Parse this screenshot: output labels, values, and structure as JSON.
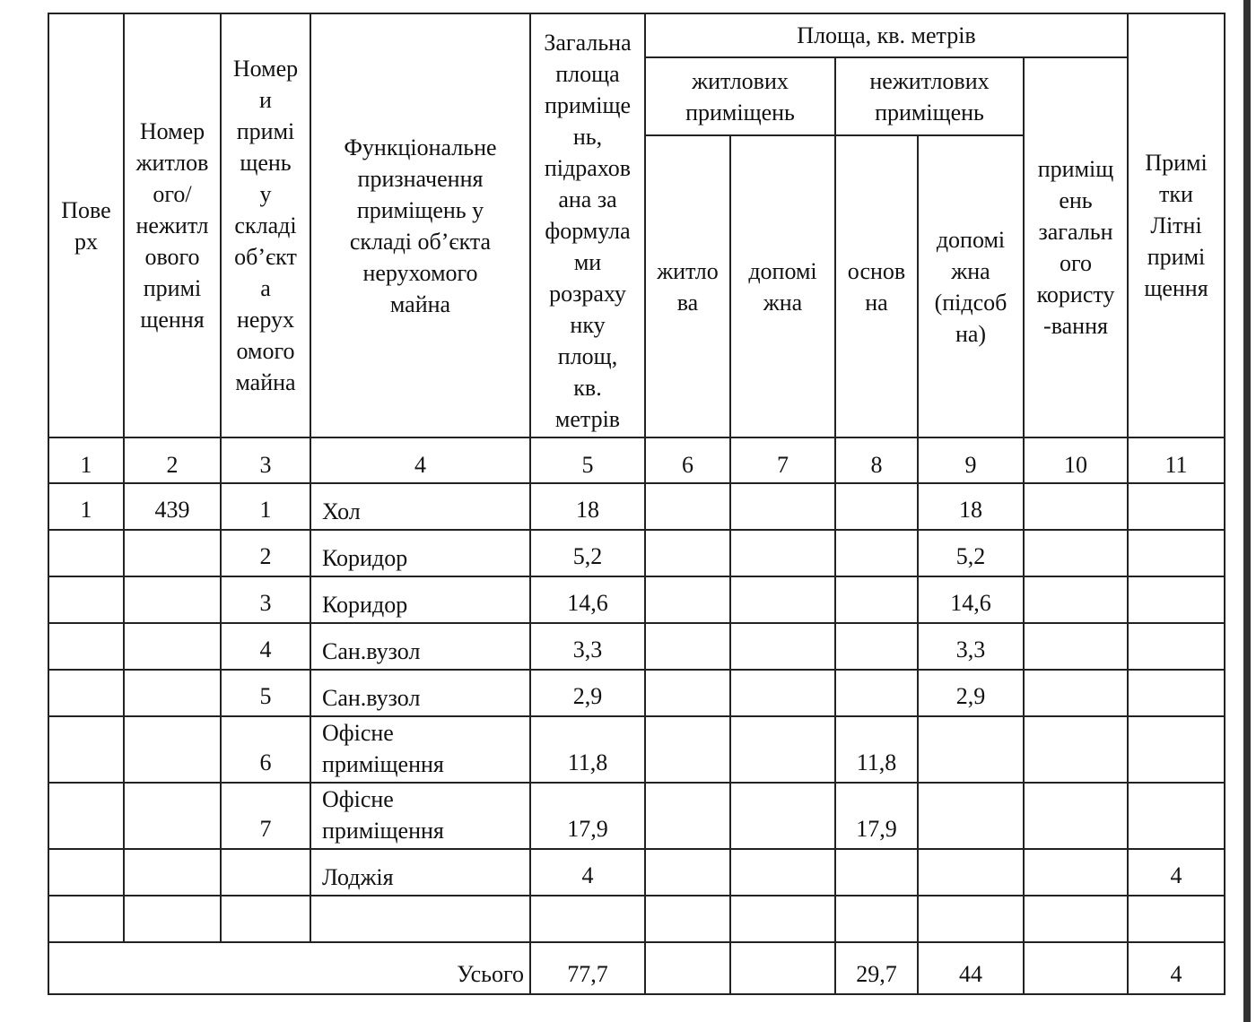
{
  "header": {
    "floor": "Пове\nрх",
    "unit_number": "Номер\nжитлов\nого/\nнежитл\nового\nпримі\nщення",
    "room_numbers": "Номер\nи\nпримі\nщень\nу\nскладі\nоб’єкт\nа\nнерух\nомого\nмайна",
    "function": "Функціональне\nпризначення\nприміщень у\nскладі об’єкта\nнерухомого\nмайна",
    "total_area": "Загальна\nплоща\nприміще\nнь,\nпідрахов\nана за\nформула\nми\nрозраху\nнку\nплощ,\nкв.\nметрів",
    "area_group": "Площа, кв. метрів",
    "residential": "житлових\nприміщень",
    "nonresidential": "нежитлових\nприміщень",
    "common": "приміщ\nень\nзагальн\nого\nкористу\n-вання",
    "notes": "Примі\nтки\nЛітні\nпримі\nщення",
    "res_living": "житло\nва",
    "res_aux": "допомі\nжна",
    "nonres_main": "основ\nна",
    "nonres_aux": "допомі\nжна\n(підсоб\nна)"
  },
  "column_numbers": [
    "1",
    "2",
    "3",
    "4",
    "5",
    "6",
    "7",
    "8",
    "9",
    "10",
    "11"
  ],
  "rows": [
    [
      "1",
      "439",
      "1",
      "Хол",
      "18",
      "",
      "",
      "",
      "18",
      "",
      ""
    ],
    [
      "",
      "",
      "2",
      "Коридор",
      "5,2",
      "",
      "",
      "",
      "5,2",
      "",
      ""
    ],
    [
      "",
      "",
      "3",
      "Коридор",
      "14,6",
      "",
      "",
      "",
      "14,6",
      "",
      ""
    ],
    [
      "",
      "",
      "4",
      "Сан.вузол",
      "3,3",
      "",
      "",
      "",
      "3,3",
      "",
      ""
    ],
    [
      "",
      "",
      "5",
      "Сан.вузол",
      "2,9",
      "",
      "",
      "",
      "2,9",
      "",
      ""
    ],
    [
      "",
      "",
      "6",
      "Офісне\nприміщення",
      "11,8",
      "",
      "",
      "11,8",
      "",
      "",
      ""
    ],
    [
      "",
      "",
      "7",
      "Офісне\nприміщення",
      "17,9",
      "",
      "",
      "17,9",
      "",
      "",
      ""
    ],
    [
      "",
      "",
      "",
      "Лоджія",
      "4",
      "",
      "",
      "",
      "",
      "",
      "4"
    ],
    [
      "",
      "",
      "",
      "",
      "",
      "",
      "",
      "",
      "",
      "",
      ""
    ]
  ],
  "total": {
    "label": "Усього",
    "values": [
      "77,7",
      "",
      "",
      "29,7",
      "44",
      "",
      "4"
    ]
  }
}
